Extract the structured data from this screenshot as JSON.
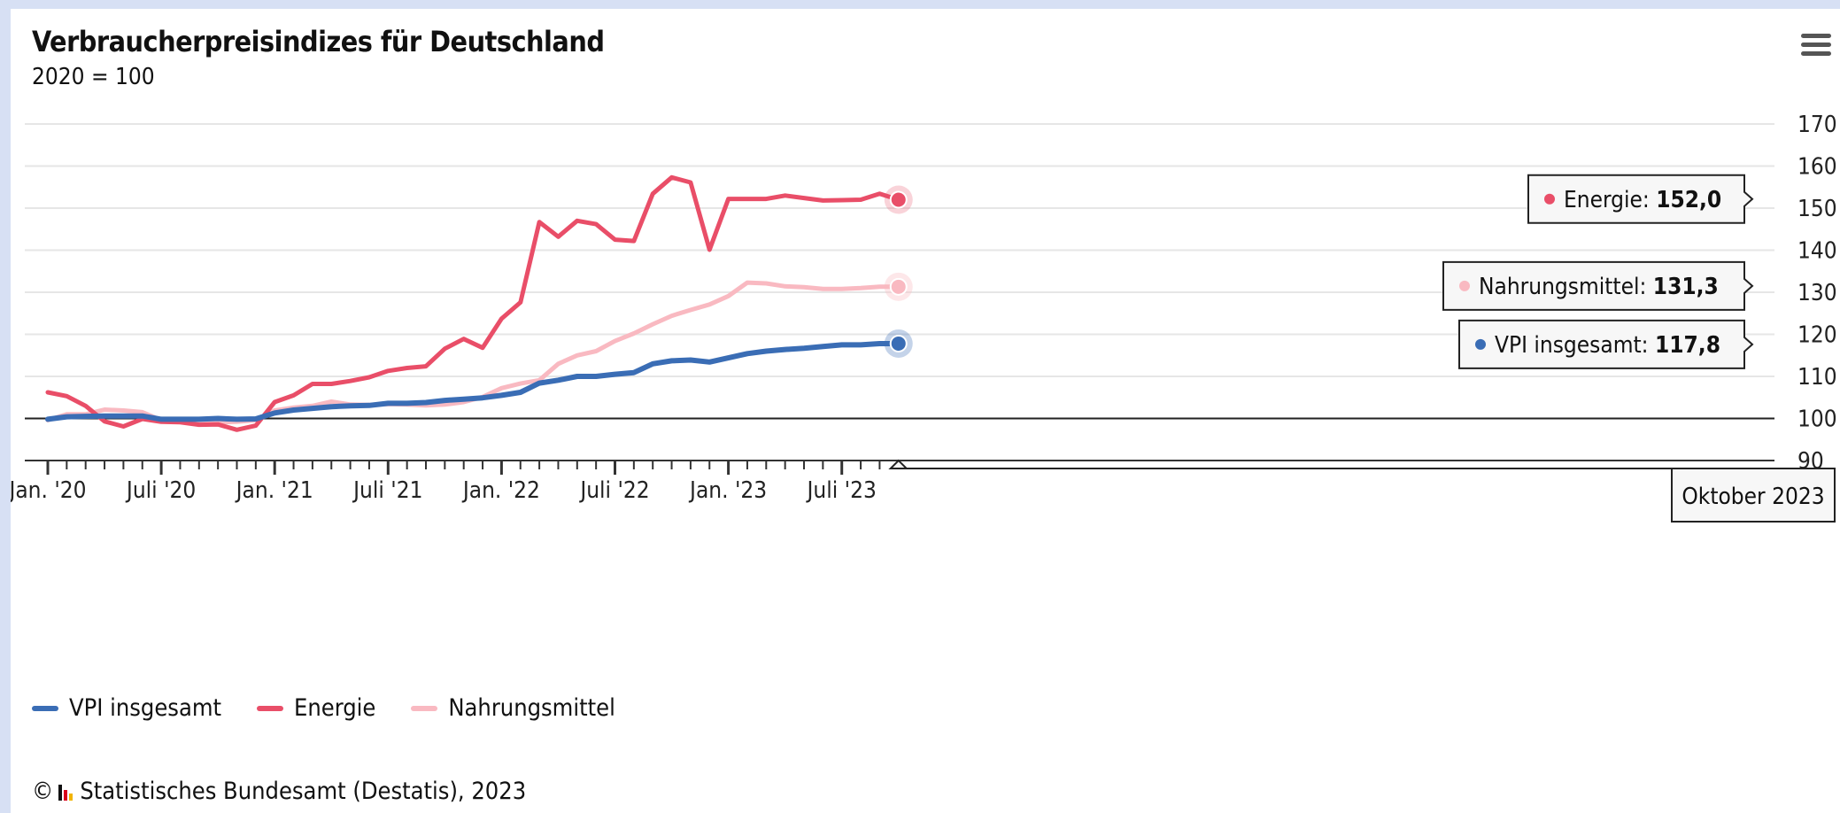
{
  "chart_data": {
    "type": "line",
    "title": "Verbraucherpreisindizes für Deutschland",
    "subtitle": "2020 = 100",
    "ylim": [
      90,
      170
    ],
    "yticks": [
      "170",
      "160",
      "150",
      "140",
      "130",
      "120",
      "110",
      "100",
      "90"
    ],
    "ytick_values": [
      170,
      160,
      150,
      140,
      130,
      120,
      110,
      100,
      90
    ],
    "yaxis_side": "right",
    "reference_line": 100,
    "x_start": "2020-01",
    "xtick_labels": [
      "Jan. '20",
      "Juli '20",
      "Jan. '21",
      "Juli '21",
      "Jan. '22",
      "Juli '22",
      "Jan. '23",
      "Juli '23"
    ],
    "xtick_dates": [
      "2020-01",
      "2020-07",
      "2021-01",
      "2021-07",
      "2022-01",
      "2022-07",
      "2023-01",
      "2023-07"
    ],
    "grid": true,
    "legend_position": "bottom-left",
    "series": [
      {
        "name": "VPI insgesamt",
        "color": "#3a6db5",
        "width": 6,
        "values": [
          99.8,
          100.4,
          100.5,
          100.6,
          100.6,
          100.6,
          99.8,
          99.8,
          99.8,
          100.0,
          99.8,
          99.9,
          101.3,
          102.0,
          102.4,
          102.8,
          103.0,
          103.1,
          103.6,
          103.6,
          103.8,
          104.3,
          104.6,
          104.9,
          105.5,
          106.2,
          108.4,
          109.1,
          110.0,
          110.0,
          110.5,
          110.9,
          113.0,
          113.7,
          113.9,
          113.4,
          114.4,
          115.4,
          116.0,
          116.4,
          116.7,
          117.1,
          117.5,
          117.5,
          117.8,
          117.8
        ]
      },
      {
        "name": "Energie",
        "color": "#e94e68",
        "width": 5,
        "values": [
          106.2,
          105.3,
          103.0,
          99.3,
          98.1,
          99.9,
          99.2,
          99.1,
          98.5,
          98.6,
          97.3,
          98.3,
          103.9,
          105.5,
          108.2,
          108.2,
          108.9,
          109.8,
          111.3,
          112.0,
          112.4,
          116.6,
          118.9,
          116.8,
          123.7,
          127.6,
          146.7,
          143.2,
          147.0,
          146.2,
          142.5,
          142.2,
          153.4,
          157.3,
          156.1,
          140.1,
          152.2,
          152.2,
          152.2,
          153.0,
          152.4,
          151.8,
          151.9,
          152.0,
          153.4,
          152.0
        ]
      },
      {
        "name": "Nahrungsmittel",
        "color": "#f9b9c1",
        "width": 5,
        "values": [
          99.6,
          101.0,
          101.0,
          102.1,
          101.9,
          101.5,
          99.6,
          99.4,
          99.1,
          99.1,
          99.2,
          99.6,
          101.9,
          102.6,
          103.0,
          104.0,
          103.3,
          103.2,
          103.4,
          103.3,
          103.1,
          103.3,
          103.9,
          105.1,
          107.2,
          108.3,
          109.1,
          113.0,
          115.0,
          116.0,
          118.4,
          120.2,
          122.4,
          124.4,
          125.8,
          127.1,
          129.1,
          132.3,
          132.1,
          131.4,
          131.2,
          130.8,
          130.8,
          131.0,
          131.3,
          131.3
        ]
      }
    ]
  },
  "tooltips": {
    "energie": {
      "label": "Energie: ",
      "value": "152,0"
    },
    "nahrung": {
      "label": "Nahrungsmittel: ",
      "value": "131,3"
    },
    "vpi": {
      "label": "VPI insgesamt: ",
      "value": "117,8"
    },
    "date": "Oktober 2023"
  },
  "legend": {
    "items": [
      {
        "label": "VPI insgesamt",
        "color": "#3a6db5"
      },
      {
        "label": "Energie",
        "color": "#e94e68"
      },
      {
        "label": "Nahrungsmittel",
        "color": "#f9b9c1"
      }
    ]
  },
  "credit": "Statistisches Bundesamt (Destatis), 2023",
  "menu_icon": "hamburger-menu-icon",
  "colors": {
    "background": "#ffffff",
    "frame": "#d7e0f4",
    "grid": "#e6e6e6",
    "baseline": "#222222"
  }
}
